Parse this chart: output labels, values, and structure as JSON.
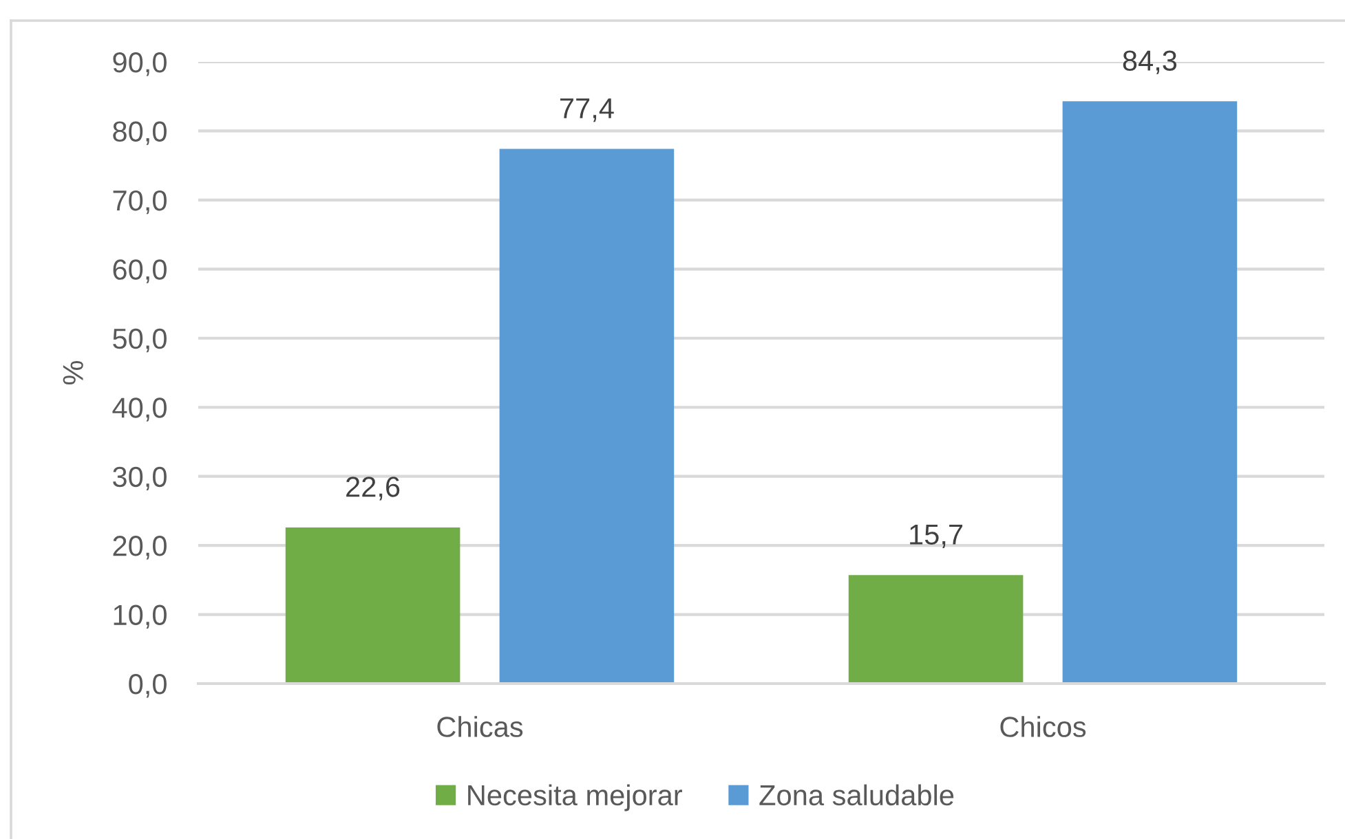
{
  "chart_data": {
    "type": "bar",
    "ylabel": "%",
    "categories": [
      "Chicas",
      "Chicos"
    ],
    "series": [
      {
        "name": "Necesita mejorar",
        "color": "#70ad47",
        "values": [
          22.6,
          15.7
        ],
        "value_labels": [
          "22,6",
          "15,7"
        ]
      },
      {
        "name": "Zona saludable",
        "color": "#5b9bd5",
        "values": [
          77.4,
          84.3
        ],
        "value_labels": [
          "77,4",
          "84,3"
        ]
      }
    ],
    "ylim": [
      0,
      90
    ],
    "yticks": [
      {
        "value": 0,
        "label": "0,0"
      },
      {
        "value": 10,
        "label": "10,0"
      },
      {
        "value": 20,
        "label": "20,0"
      },
      {
        "value": 30,
        "label": "30,0"
      },
      {
        "value": 40,
        "label": "40,0"
      },
      {
        "value": 50,
        "label": "50,0"
      },
      {
        "value": 60,
        "label": "60,0"
      },
      {
        "value": 70,
        "label": "70,0"
      },
      {
        "value": 80,
        "label": "80,0"
      },
      {
        "value": 90,
        "label": "90,0"
      }
    ],
    "grid": "y",
    "legend": "bottom"
  }
}
